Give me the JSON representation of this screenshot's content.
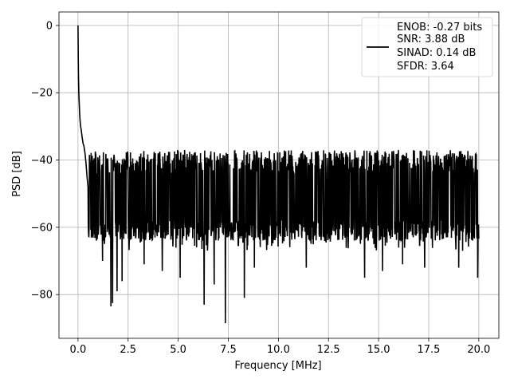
{
  "chart_data": {
    "type": "line",
    "title": "",
    "xlabel": "Frequency [MHz]",
    "ylabel": "PSD [dB]",
    "xlim": [
      -0.95,
      21.0
    ],
    "ylim": [
      -93.0,
      4.0
    ],
    "xticks": [
      0.0,
      2.5,
      5.0,
      7.5,
      10.0,
      12.5,
      15.0,
      17.5,
      20.0
    ],
    "xtick_labels": [
      "0.0",
      "2.5",
      "5.0",
      "7.5",
      "10.0",
      "12.5",
      "15.0",
      "17.5",
      "20.0"
    ],
    "yticks": [
      0,
      -20,
      -40,
      -60,
      -80
    ],
    "ytick_labels": [
      "0",
      "−20",
      "−40",
      "−60",
      "−80"
    ],
    "grid": true,
    "legend_position": "upper-right",
    "line_color": "#000000",
    "legend": {
      "lines": [
        "ENOB: -0.27 bits",
        "SNR: 3.88 dB",
        "SINAD: 0.14 dB",
        "SFDR: 3.64"
      ]
    },
    "series": [
      {
        "x_range": [
          0.0,
          20.0
        ],
        "trace": [
          [
            0.0,
            0
          ],
          [
            0.01,
            -8
          ],
          [
            0.02,
            -14
          ],
          [
            0.04,
            -20
          ],
          [
            0.06,
            -23
          ],
          [
            0.08,
            -26
          ],
          [
            0.1,
            -28
          ],
          [
            0.13,
            -30
          ],
          [
            0.16,
            -31
          ],
          [
            0.2,
            -33
          ],
          [
            0.25,
            -35
          ],
          [
            0.3,
            -36
          ],
          [
            0.35,
            -38
          ],
          [
            0.4,
            -41
          ],
          [
            0.45,
            -45
          ],
          [
            0.5,
            -48
          ]
        ],
        "noise_floor_db": -51,
        "noise_upper_db": [
          -44,
          -37
        ],
        "noise_lower_db": [
          -58,
          -64
        ],
        "dips": [
          [
            1.22,
            -70
          ],
          [
            1.65,
            -83.5
          ],
          [
            1.73,
            -82.5
          ],
          [
            1.95,
            -79
          ],
          [
            2.2,
            -76
          ],
          [
            3.3,
            -71
          ],
          [
            4.2,
            -73
          ],
          [
            5.1,
            -75
          ],
          [
            6.3,
            -83
          ],
          [
            6.8,
            -77
          ],
          [
            7.35,
            -88.5
          ],
          [
            8.3,
            -81
          ],
          [
            8.8,
            -72
          ],
          [
            11.4,
            -72
          ],
          [
            14.3,
            -75
          ],
          [
            15.2,
            -73
          ],
          [
            16.2,
            -71
          ],
          [
            17.3,
            -72
          ],
          [
            19.0,
            -72
          ],
          [
            19.95,
            -75
          ]
        ]
      }
    ]
  }
}
